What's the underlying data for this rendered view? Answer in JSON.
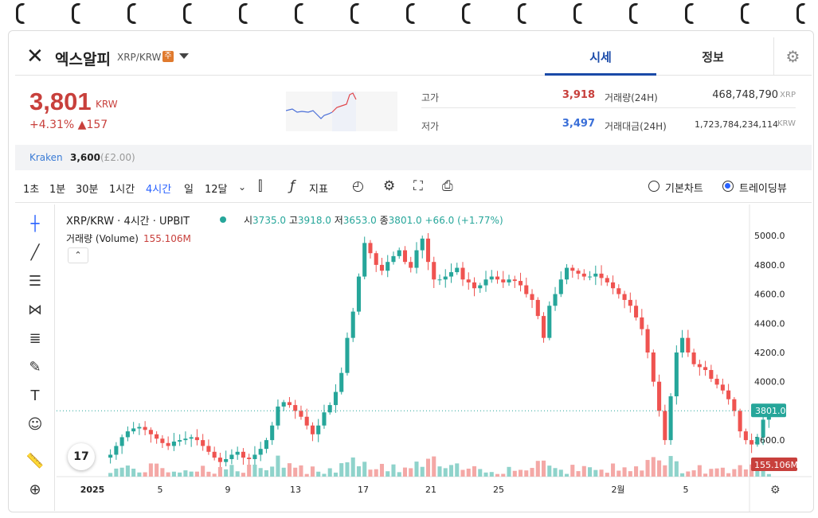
{
  "header": {
    "coin_name": "엑스알피",
    "pair": "XRP/KRW",
    "warning_badge": "주",
    "tabs": [
      {
        "label": "시세"
      },
      {
        "label": "정보"
      }
    ]
  },
  "price": {
    "current": "3,801",
    "unit": "KRW",
    "change_pct": "+4.31%",
    "change_abs": "▲157"
  },
  "stats": {
    "high_label": "고가",
    "high": "3,918",
    "low_label": "저가",
    "low": "3,497",
    "volume_label": "거래량(24H)",
    "volume": "468,748,790",
    "volume_unit": "XRP",
    "value_label": "거래대금(24H)",
    "value": "1,723,784,234,114",
    "value_unit": "KRW"
  },
  "exchange": {
    "name": "Kraken",
    "price": "3,600",
    "sub": "(£2.00)"
  },
  "toolbar": {
    "intervals": [
      "1초",
      "1분",
      "30분",
      "1시간",
      "4시간",
      "일",
      "12달"
    ],
    "active_interval": "4시간",
    "indicator_label": "지표",
    "view_basic": "기본차트",
    "view_tv": "트레이딩뷰"
  },
  "chart_legend": {
    "symbol": "XRP/KRW · 4시간 · UPBIT",
    "open_k": "시",
    "open": "3735.0",
    "high_k": "고",
    "high": "3918.0",
    "low_k": "저",
    "low": "3653.0",
    "close_k": "종",
    "close": "3801.0",
    "change": "+66.0 (+1.77%)",
    "volume_label": "거래량 (Volume)",
    "volume_value": "155.106M"
  },
  "colors": {
    "up": "#26a69a",
    "down": "#ef5350",
    "accent": "#2962ff",
    "price_red": "#c8403c"
  },
  "chart_data": {
    "type": "candlestick",
    "y_ticks": [
      "5000.0",
      "4800.0",
      "4600.0",
      "4400.0",
      "4200.0",
      "4000.0",
      "3600.0"
    ],
    "ylim": [
      3350,
      5050
    ],
    "x_ticks": [
      "2025",
      "5",
      "9",
      "13",
      "17",
      "21",
      "25",
      "2월",
      "5"
    ],
    "last_price": "3801.0",
    "last_price_value": 3801,
    "volume_badge": "155.106M",
    "closes": [
      3500,
      3560,
      3620,
      3660,
      3680,
      3690,
      3670,
      3640,
      3610,
      3580,
      3560,
      3590,
      3600,
      3610,
      3620,
      3600,
      3560,
      3520,
      3480,
      3450,
      3470,
      3500,
      3520,
      3480,
      3470,
      3500,
      3540,
      3600,
      3700,
      3830,
      3860,
      3840,
      3800,
      3760,
      3700,
      3640,
      3700,
      3790,
      3840,
      3930,
      4060,
      4300,
      4480,
      4720,
      4950,
      4880,
      4800,
      4760,
      4820,
      4860,
      4900,
      4820,
      4780,
      4900,
      4980,
      4820,
      4700,
      4700,
      4720,
      4750,
      4780,
      4700,
      4680,
      4640,
      4660,
      4700,
      4720,
      4700,
      4680,
      4700,
      4690,
      4660,
      4600,
      4560,
      4450,
      4300,
      4520,
      4600,
      4700,
      4780,
      4760,
      4740,
      4720,
      4720,
      4740,
      4710,
      4680,
      4640,
      4600,
      4560,
      4520,
      4440,
      4360,
      4200,
      4000,
      3800,
      3600,
      3900,
      4200,
      4300,
      4200,
      4120,
      4100,
      4080,
      4020,
      3980,
      3940,
      3880,
      3800,
      3660,
      3600,
      3570,
      3620,
      3740,
      3801
    ]
  }
}
